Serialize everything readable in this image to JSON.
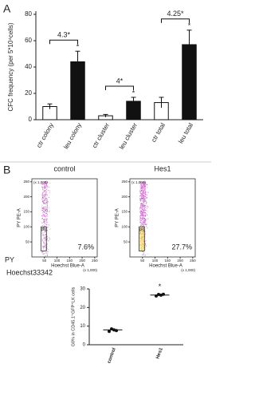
{
  "chart_data": [
    {
      "type": "bar",
      "panel_label": "A",
      "y_label": "CFC frequency (per 5*10⁴cells)",
      "categories": [
        "ctr colony",
        "leu colony",
        "ctr cluster",
        "leu cluster",
        "ctr total",
        "leu total"
      ],
      "values": [
        10,
        44,
        3,
        14,
        13,
        57
      ],
      "errors": [
        2,
        8,
        1,
        3,
        4,
        11
      ],
      "colors": [
        "#ffffff",
        "#111111",
        "#ffffff",
        "#111111",
        "#ffffff",
        "#111111"
      ],
      "significance": [
        null,
        "*",
        null,
        "*",
        null,
        "*"
      ],
      "annotations": [
        "4.3*",
        "4*",
        "4.25*"
      ],
      "ylim": [
        0,
        80
      ],
      "yticks": [
        0,
        20,
        40,
        60,
        80
      ]
    },
    {
      "type": "flow",
      "panel_label": "B",
      "title": "control",
      "x_label": "Hoechst Blue-A",
      "y_label": "PY PE-A",
      "x_unit": "(x 1,000)",
      "y_unit": "(x 1,000)",
      "gate_label": "P5",
      "gate_percent": "7.6%",
      "outer_y_label": "PY",
      "outer_x_label": "Hoechst33342",
      "xlim": [
        0,
        260
      ],
      "xticks": [
        50,
        100,
        150,
        200,
        250
      ],
      "ylim": [
        0,
        260
      ],
      "yticks": [
        50,
        100,
        150,
        200,
        250
      ]
    },
    {
      "type": "flow",
      "title": "Hes1",
      "x_label": "Hoechst Blue-A",
      "y_label": "PY PE-A",
      "x_unit": "(x 1,000)",
      "y_unit": "(x 1,000)",
      "gate_label": "P5",
      "gate_percent": "27.7%",
      "xlim": [
        0,
        260
      ],
      "xticks": [
        50,
        100,
        150,
        200,
        250
      ],
      "ylim": [
        0,
        260
      ],
      "yticks": [
        50,
        100,
        150,
        200,
        250
      ]
    },
    {
      "type": "strip",
      "y_label": "G0% in CD45.1⁺GFP⁺LK cells",
      "categories": [
        "control",
        "Hes1"
      ],
      "values": [
        [
          7.2,
          8.5,
          8.0,
          7.6
        ],
        [
          26.2,
          27.0,
          26.6,
          27.1
        ]
      ],
      "means": [
        8,
        26.7
      ],
      "significance": [
        null,
        "*"
      ],
      "ylim": [
        0,
        30
      ],
      "yticks": [
        0,
        10,
        20,
        30
      ]
    }
  ]
}
